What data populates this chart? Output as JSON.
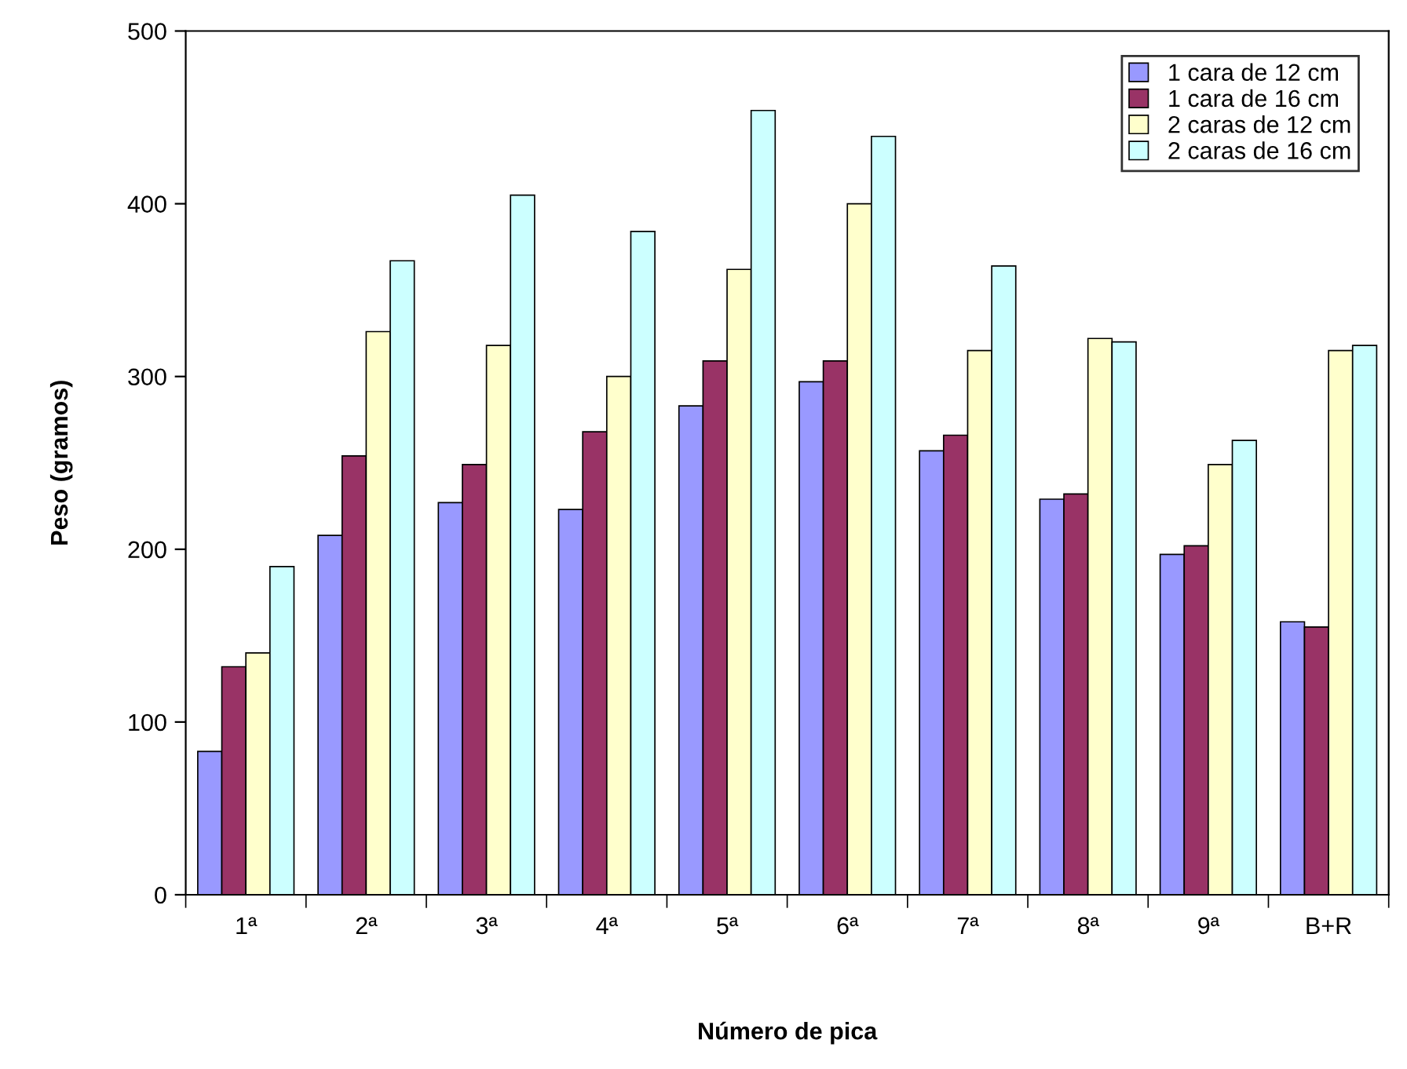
{
  "chart_data": {
    "type": "bar",
    "xlabel": "Número de pica",
    "ylabel": "Peso (gramos)",
    "categories": [
      "1ª",
      "2ª",
      "3ª",
      "4ª",
      "5ª",
      "6ª",
      "7ª",
      "8ª",
      "9ª",
      "B+R"
    ],
    "series": [
      {
        "name": "1 cara de 12 cm",
        "color": "#9999ff",
        "values": [
          83,
          208,
          227,
          223,
          283,
          297,
          257,
          229,
          197,
          158
        ]
      },
      {
        "name": "1 cara de 16 cm",
        "color": "#993366",
        "values": [
          132,
          254,
          249,
          268,
          309,
          309,
          266,
          232,
          202,
          155
        ]
      },
      {
        "name": "2 caras de 12 cm",
        "color": "#ffffcc",
        "values": [
          140,
          326,
          318,
          300,
          362,
          400,
          315,
          322,
          249,
          315
        ]
      },
      {
        "name": "2 caras de 16 cm",
        "color": "#ccffff",
        "values": [
          190,
          367,
          405,
          384,
          454,
          439,
          364,
          320,
          263,
          318
        ]
      }
    ],
    "ylim": [
      0,
      500
    ],
    "yticks": [
      0,
      100,
      200,
      300,
      400,
      500
    ],
    "grid": false,
    "legend": "top right"
  }
}
